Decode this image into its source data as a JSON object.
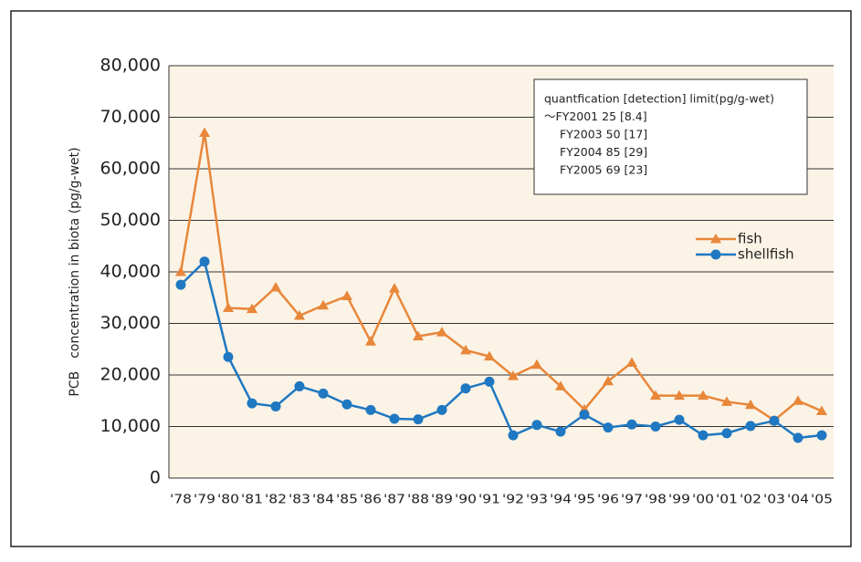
{
  "chart_data": {
    "type": "line",
    "ylabel": "PCB　concentration in biota (pg/g-wet)",
    "categories": [
      "'78",
      "'79",
      "'80",
      "'81",
      "'82",
      "'83",
      "'84",
      "'85",
      "'86",
      "'87",
      "'88",
      "'89",
      "'90",
      "'91",
      "'92",
      "'93",
      "'94",
      "'95",
      "'96",
      "'97",
      "'98",
      "'99",
      "'00",
      "'01",
      "'02",
      "'03",
      "'04",
      "'05"
    ],
    "series": [
      {
        "name": "fish",
        "color": "#e8873a",
        "marker": "triangle",
        "values": [
          40000,
          67000,
          33000,
          32800,
          37000,
          31500,
          33500,
          35300,
          26500,
          36800,
          27500,
          28300,
          24800,
          23600,
          19800,
          22000,
          17800,
          13300,
          18800,
          22400,
          16000,
          16000,
          16000,
          14800,
          14200,
          11200,
          15000,
          13000
        ]
      },
      {
        "name": "shellfish",
        "color": "#1f78c1",
        "marker": "circle",
        "values": [
          37500,
          42000,
          23500,
          14500,
          13900,
          17800,
          16400,
          14300,
          13200,
          11500,
          11400,
          13200,
          17400,
          18700,
          8300,
          10300,
          9000,
          12300,
          9800,
          10400,
          10000,
          11300,
          8300,
          8700,
          10100,
          11100,
          7800,
          8300
        ]
      }
    ],
    "ylim": [
      0,
      80000
    ],
    "yticks": [
      0,
      {
        "value": 10000,
        "label": "10,000"
      },
      {
        "value": 20000,
        "label": "20,000"
      },
      {
        "value": 30000,
        "label": "30,000"
      },
      {
        "value": 40000,
        "label": "40,000"
      },
      {
        "value": 50000,
        "label": "50,000"
      },
      {
        "value": 60000,
        "label": "60,000"
      },
      {
        "value": 70000,
        "label": "70,000"
      },
      {
        "value": 80000,
        "label": "80,000"
      }
    ],
    "grid": true,
    "notes": [
      "quantfication [detection] limit(pg/g-wet)",
      "～FY2001 25 [8.4]",
      "FY2003 50 [17]",
      "FY2004 85 [29]",
      "FY2005 69 [23]"
    ]
  }
}
